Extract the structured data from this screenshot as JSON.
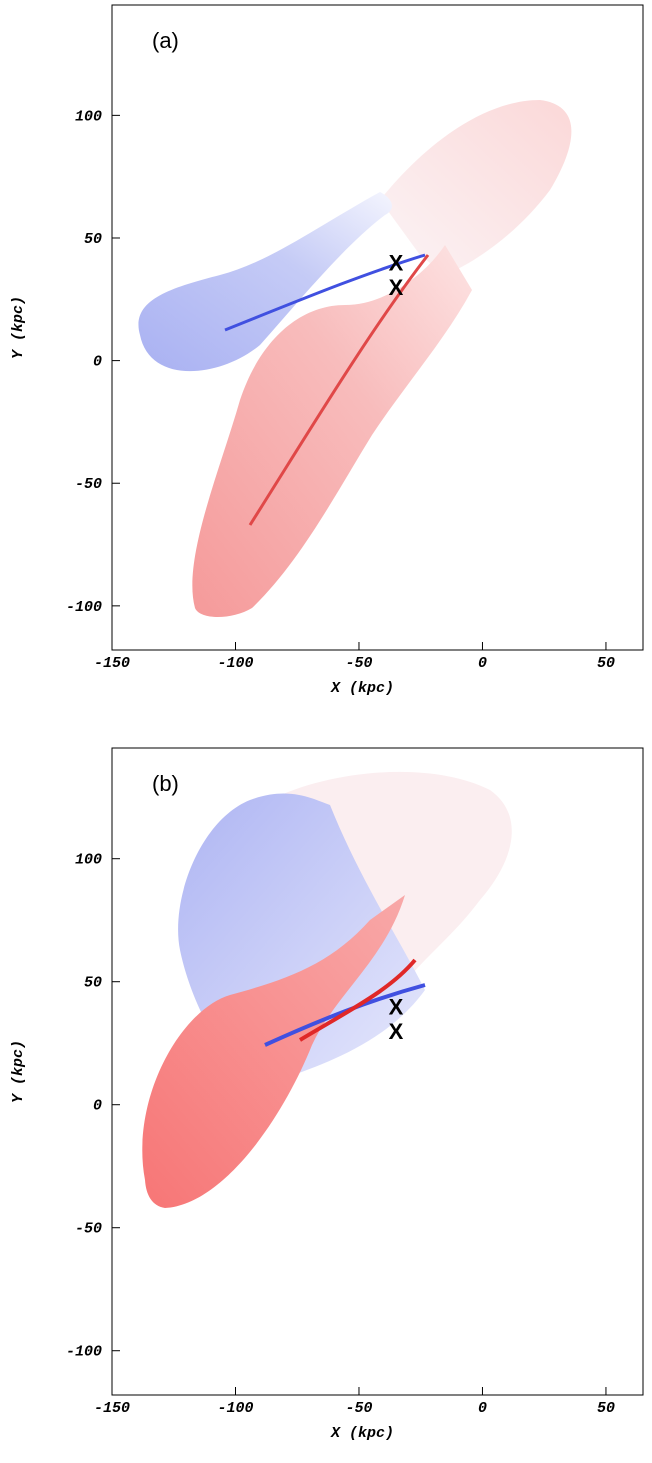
{
  "chart_data": [
    {
      "type": "scatter",
      "label": "(a)",
      "xlabel": "X (kpc)",
      "ylabel": "Y (kpc)",
      "xlim": [
        -150,
        65
      ],
      "ylim": [
        -118,
        145
      ],
      "xticks": [
        -150,
        -100,
        -50,
        0,
        50
      ],
      "yticks": [
        -100,
        -50,
        0,
        50,
        100
      ],
      "marker": "X",
      "x": [
        -35,
        -35
      ],
      "y": [
        40,
        30
      ]
    },
    {
      "type": "scatter",
      "label": "(b)",
      "xlabel": "X (kpc)",
      "ylabel": "Y (kpc)",
      "xlim": [
        -150,
        65
      ],
      "ylim": [
        -118,
        145
      ],
      "xticks": [
        -150,
        -100,
        -50,
        0,
        50
      ],
      "yticks": [
        -100,
        -50,
        0,
        50,
        100
      ],
      "marker": "X",
      "x": [
        -35,
        -35
      ],
      "y": [
        40,
        30
      ]
    }
  ]
}
